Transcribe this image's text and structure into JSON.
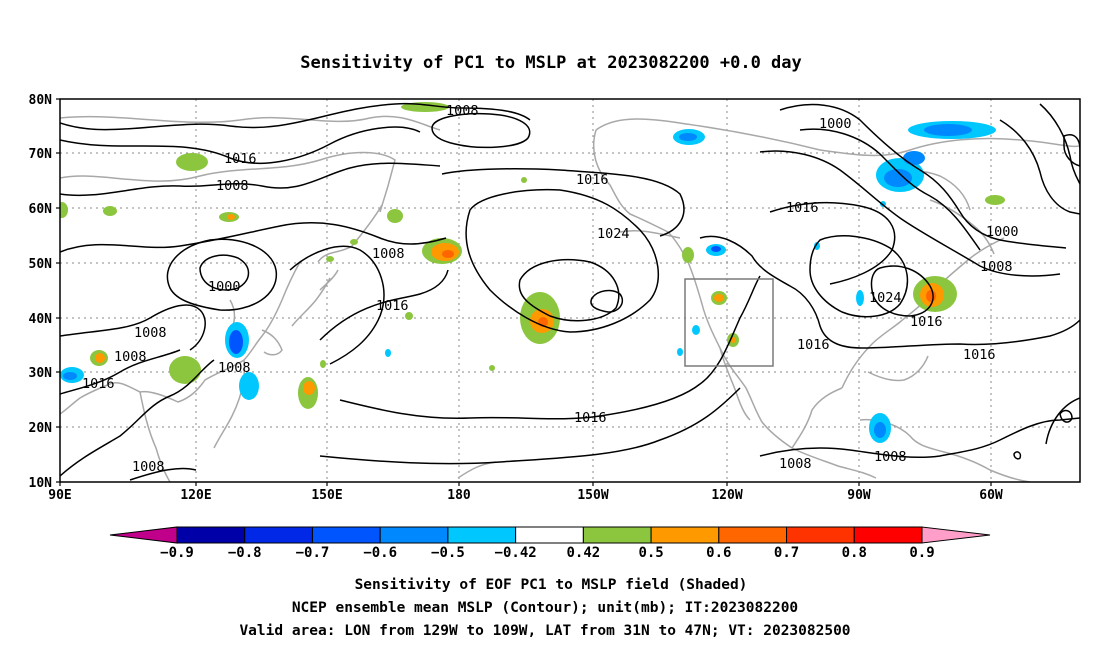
{
  "title": "Sensitivity of PC1 to MSLP at 2023082200 +0.0 day",
  "lat_labels": [
    "80N",
    "70N",
    "60N",
    "50N",
    "40N",
    "30N",
    "20N",
    "10N"
  ],
  "lon_labels": [
    "90E",
    "120E",
    "150E",
    "180",
    "150W",
    "120W",
    "90W",
    "60W"
  ],
  "contour_labels": [
    "1008",
    "1016",
    "1008",
    "1000",
    "1008",
    "1008",
    "1016",
    "1008",
    "1008",
    "1008",
    "1016",
    "1024",
    "1016",
    "1016",
    "1000",
    "1016",
    "1000",
    "1008",
    "1024",
    "1016",
    "1016",
    "1016",
    "1008",
    "1008"
  ],
  "colorbar": {
    "ticks": [
      "−0.9",
      "−0.8",
      "−0.7",
      "−0.6",
      "−0.5",
      "−0.42",
      "0.42",
      "0.5",
      "0.6",
      "0.7",
      "0.8",
      "0.9"
    ],
    "colors": [
      "#0000a8",
      "#0028e6",
      "#0055ff",
      "#0088ff",
      "#00c8ff",
      "#ffffff",
      "#8cc63f",
      "#ff9900",
      "#ff6600",
      "#ff3300",
      "#ff0000"
    ],
    "low_end_color": "#c0008a",
    "high_end_color": "#ff9ec8"
  },
  "captions": {
    "line1": "Sensitivity of EOF PC1 to MSLP field (Shaded)",
    "line2": "NCEP ensemble mean MSLP (Contour); unit(mb); IT:2023082200",
    "line3": "Valid area: LON from 129W to 109W, LAT from 31N to 47N; VT: 2023082500"
  },
  "valid_area": {
    "lon_range": [
      "129W",
      "109W"
    ],
    "lat_range": [
      "31N",
      "47N"
    ]
  }
}
